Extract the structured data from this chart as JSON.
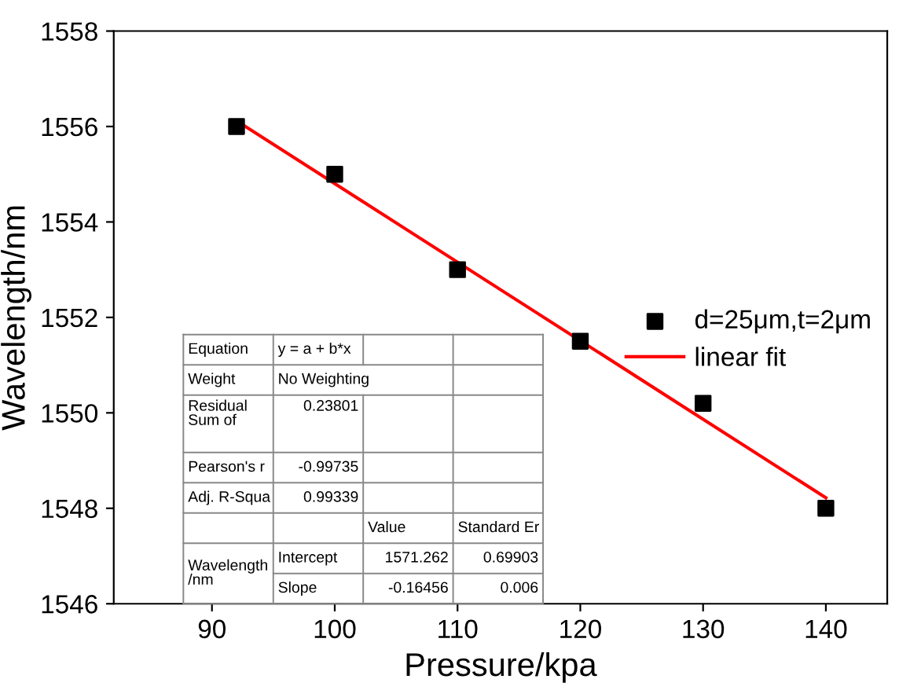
{
  "chart_data": {
    "type": "scatter",
    "xlabel": "Pressure/kpa",
    "ylabel": "Wavelength/nm",
    "series": [
      {
        "name": "d=25μm,t=2μm",
        "color": "#000000",
        "marker": "square",
        "x": [
          92,
          100,
          110,
          120,
          130,
          140
        ],
        "values": [
          1556.0,
          1555.0,
          1553.0,
          1551.5,
          1550.2,
          1548.0
        ]
      },
      {
        "name": "linear fit",
        "type": "line",
        "color": "#ff0000",
        "marker": "none",
        "line_style": "solid",
        "x": [
          92,
          140
        ],
        "values": [
          1556.12,
          1548.22
        ]
      }
    ],
    "xlim": [
      82,
      145
    ],
    "ylim": [
      1546,
      1558
    ],
    "xticks": [
      90,
      100,
      110,
      120,
      130,
      140
    ],
    "yticks": [
      1546,
      1548,
      1550,
      1552,
      1554,
      1556,
      1558
    ],
    "grid": false,
    "legend": "right",
    "annotations": [
      "Equation",
      "y = a + b*x",
      "Weight",
      "No Weighting",
      "Residual\nSum of",
      "0.23801",
      "Pearson's r",
      "-0.99735",
      "Adj. R-Squa",
      "0.99339",
      "Value",
      "Standard Er",
      "Wavelength\n/nm",
      "Intercept",
      "1571.262",
      "0.69903",
      "Slope",
      "-0.16456",
      "0.006"
    ]
  }
}
